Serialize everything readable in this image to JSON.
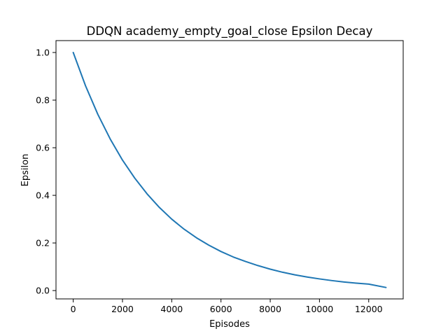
{
  "chart_data": {
    "type": "line",
    "title": "DDQN academy_empty_goal_close Epsilon Decay",
    "xlabel": "Episodes",
    "ylabel": "Epsilon",
    "xlim": [
      -700,
      13400
    ],
    "ylim": [
      -0.035,
      1.05
    ],
    "xticks": [
      0,
      2000,
      4000,
      6000,
      8000,
      10000,
      12000
    ],
    "yticks": [
      0.0,
      0.2,
      0.4,
      0.6,
      0.8,
      1.0
    ],
    "xtick_labels": [
      "0",
      "2000",
      "4000",
      "6000",
      "8000",
      "10000",
      "12000"
    ],
    "ytick_labels": [
      "0.0",
      "0.2",
      "0.4",
      "0.6",
      "0.8",
      "1.0"
    ],
    "grid": false,
    "series": [
      {
        "color": "#1f77b4",
        "x": [
          0,
          500,
          1000,
          1500,
          2000,
          2500,
          3000,
          3500,
          4000,
          4500,
          5000,
          5500,
          6000,
          6500,
          7000,
          7500,
          8000,
          8500,
          9000,
          9500,
          10000,
          10500,
          11000,
          11500,
          12000,
          12700
        ],
        "y": [
          1.0,
          0.86,
          0.74,
          0.637,
          0.548,
          0.472,
          0.406,
          0.349,
          0.3,
          0.258,
          0.222,
          0.191,
          0.164,
          0.141,
          0.122,
          0.105,
          0.09,
          0.077,
          0.066,
          0.057,
          0.049,
          0.042,
          0.036,
          0.031,
          0.027,
          0.013
        ]
      }
    ]
  }
}
